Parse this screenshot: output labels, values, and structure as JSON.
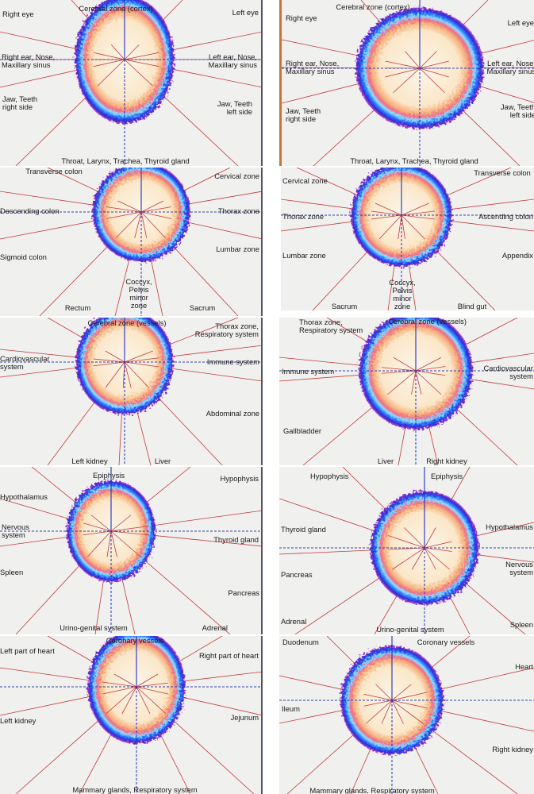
{
  "panels": [
    {
      "labels": [
        {
          "text": "Cerebral zone (cortex)"
        },
        {
          "text": "Right eye"
        },
        {
          "text": "Left eye"
        },
        {
          "text": "Right ear, Nose,\nMaxillary sinus"
        },
        {
          "text": "Left ear, Nose,\nMaxillary sinus"
        },
        {
          "text": "Jaw, Teeth\nright side"
        },
        {
          "text": "Jaw, Teeth\nleft side"
        },
        {
          "text": "Throat, Larynx, Trachea, Thyroid gland"
        }
      ]
    },
    {
      "labels": [
        {
          "text": "Cerebral zone (cortex)"
        },
        {
          "text": "Right eye"
        },
        {
          "text": "Left eye"
        },
        {
          "text": "Right ear, Nose,\nMaxillary sinus"
        },
        {
          "text": "Left ear, Nose,\nMaxillary sinus"
        },
        {
          "text": "Jaw, Teeth\nright side"
        },
        {
          "text": "Jaw, Teeth\nleft side"
        },
        {
          "text": "Throat, Larynx, Trachea, Thyroid gland"
        }
      ]
    },
    {
      "labels": [
        {
          "text": "Transverse colon"
        },
        {
          "text": "Cervical zone"
        },
        {
          "text": "Descending colon"
        },
        {
          "text": "Thorax zone"
        },
        {
          "text": "Lumbar zone"
        },
        {
          "text": "Sigmoid colon"
        },
        {
          "text": "Coccyx,\nPelvis\nminor\nzone"
        },
        {
          "text": "Rectum"
        },
        {
          "text": "Sacrum"
        }
      ]
    },
    {
      "labels": [
        {
          "text": "Cervical zone"
        },
        {
          "text": "Transverse colon"
        },
        {
          "text": "Thorax zone"
        },
        {
          "text": "Ascending colon"
        },
        {
          "text": "Lumbar zone"
        },
        {
          "text": "Appendix"
        },
        {
          "text": "Coccyx,\nPelvis\nminor\nzone"
        },
        {
          "text": "Sacrum"
        },
        {
          "text": "Blind gut"
        }
      ]
    },
    {
      "labels": [
        {
          "text": "Cerebral zone (vessels)"
        },
        {
          "text": "Thorax zone,\nRespiratory system"
        },
        {
          "text": "Cardiovascular\nsystem"
        },
        {
          "text": "Immune system"
        },
        {
          "text": "Abdominal zone"
        },
        {
          "text": "Left kidney"
        },
        {
          "text": "Liver"
        }
      ]
    },
    {
      "labels": [
        {
          "text": "Thorax zone,\nRespiratory system"
        },
        {
          "text": "Cerebral zone (vessels)"
        },
        {
          "text": "Immune system"
        },
        {
          "text": "Cardiovascular\nsystem"
        },
        {
          "text": "Gallbladder"
        },
        {
          "text": "Liver"
        },
        {
          "text": "Right kidney"
        }
      ]
    },
    {
      "labels": [
        {
          "text": "Epiphysis"
        },
        {
          "text": "Hypophysis"
        },
        {
          "text": "Hypothalamus"
        },
        {
          "text": "Nervous\nsystem"
        },
        {
          "text": "Thyroid gland"
        },
        {
          "text": "Spleen"
        },
        {
          "text": "Pancreas"
        },
        {
          "text": "Urino-genital system"
        },
        {
          "text": "Adrenal"
        }
      ]
    },
    {
      "labels": [
        {
          "text": "Hypophysis"
        },
        {
          "text": "Epiphysis"
        },
        {
          "text": "Thyroid gland"
        },
        {
          "text": "Hypothalamus"
        },
        {
          "text": "Nervous\nsystem"
        },
        {
          "text": "Pancreas"
        },
        {
          "text": "Adrenal"
        },
        {
          "text": "Urino-genital system"
        },
        {
          "text": "Spleen"
        }
      ]
    },
    {
      "labels": [
        {
          "text": "Coronary vessels"
        },
        {
          "text": "Left part of heart"
        },
        {
          "text": "Right part of heart"
        },
        {
          "text": "Left kidney"
        },
        {
          "text": "Jejunum"
        },
        {
          "text": "Mammary glands, Respiratory system"
        }
      ]
    },
    {
      "labels": [
        {
          "text": "Duodenum"
        },
        {
          "text": "Coronary vessels"
        },
        {
          "text": "Heart"
        },
        {
          "text": "Ileum"
        },
        {
          "text": "Right kidney"
        },
        {
          "text": "Mammary glands, Respiratory system"
        }
      ]
    }
  ]
}
